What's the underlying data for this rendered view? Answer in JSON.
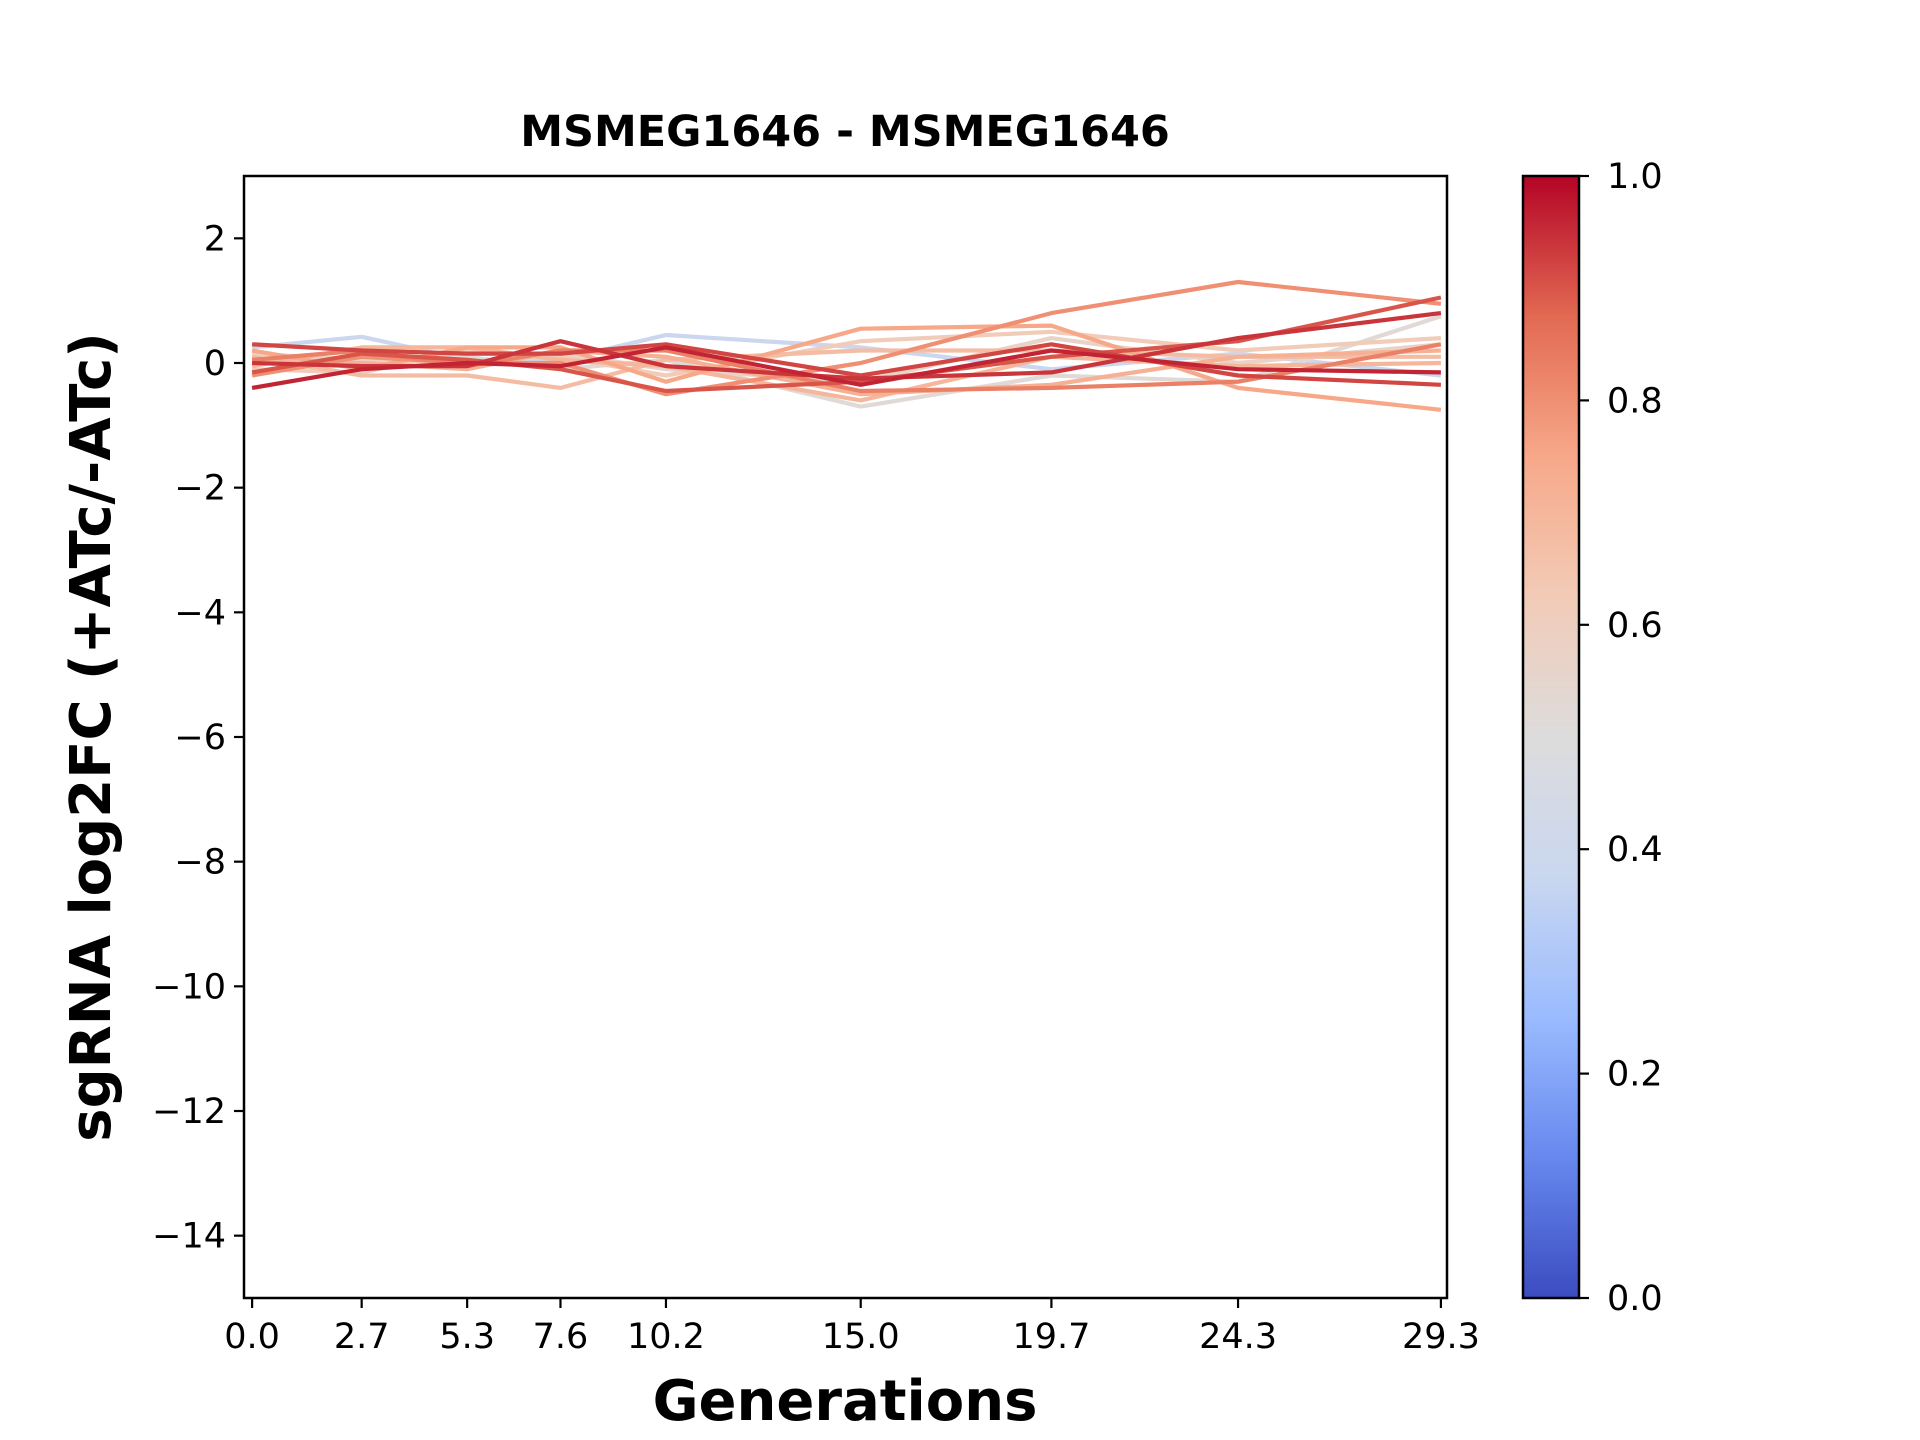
{
  "chart_data": {
    "type": "line",
    "title": "MSMEG1646 - MSMEG1646",
    "xlabel": "Generations",
    "ylabel": "sgRNA log2FC (+ATc/-ATc)",
    "x": [
      0.0,
      2.7,
      5.3,
      7.6,
      10.2,
      15.0,
      19.7,
      24.3,
      29.3
    ],
    "x_tick_labels": [
      "0.0",
      "2.7",
      "5.3",
      "7.6",
      "10.2",
      "15.0",
      "19.7",
      "24.3",
      "29.3"
    ],
    "ylim": [
      -15,
      3
    ],
    "y_ticks": [
      2,
      0,
      -2,
      -4,
      -6,
      -8,
      -10,
      -12,
      -14
    ],
    "y_tick_labels": [
      "2",
      "0",
      "−2",
      "−4",
      "−6",
      "−8",
      "−10",
      "−12",
      "−14"
    ],
    "grid": false,
    "colorbar": {
      "colormap": "coolwarm",
      "range": [
        0.0,
        1.0
      ],
      "ticks": [
        "0.0",
        "0.2",
        "0.4",
        "0.6",
        "0.8",
        "1.0"
      ],
      "colors": [
        "#3b4cc0",
        "#6788ee",
        "#9abbff",
        "#c9d7f0",
        "#dddcdc",
        "#f2cbb7",
        "#f7a889",
        "#e26952",
        "#b40426"
      ]
    },
    "series": [
      {
        "color_value": 0.38,
        "values": [
          0.25,
          0.42,
          0.05,
          0.05,
          0.45,
          0.25,
          -0.1,
          0.15,
          -0.2
        ]
      },
      {
        "color_value": 0.52,
        "values": [
          0.05,
          -0.05,
          0.1,
          -0.1,
          0.05,
          -0.7,
          -0.2,
          -0.3,
          0.75
        ]
      },
      {
        "color_value": 0.57,
        "values": [
          0.15,
          0.05,
          0.0,
          0.15,
          -0.1,
          -0.3,
          0.4,
          0.0,
          0.3
        ]
      },
      {
        "color_value": 0.62,
        "values": [
          -0.1,
          -0.15,
          0.2,
          0.1,
          -0.2,
          0.35,
          0.5,
          0.2,
          0.4
        ]
      },
      {
        "color_value": 0.68,
        "values": [
          0.1,
          -0.2,
          -0.2,
          -0.4,
          0.05,
          0.2,
          0.2,
          0.1,
          0.1
        ]
      },
      {
        "color_value": 0.7,
        "values": [
          -0.05,
          0.25,
          0.25,
          0.05,
          -0.05,
          -0.6,
          0.1,
          -0.05,
          0.0
        ]
      },
      {
        "color_value": 0.72,
        "values": [
          0.0,
          0.0,
          -0.1,
          0.2,
          0.1,
          -0.5,
          -0.35,
          0.1,
          0.2
        ]
      },
      {
        "color_value": 0.75,
        "values": [
          0.2,
          -0.1,
          0.25,
          0.25,
          -0.3,
          0.55,
          0.6,
          -0.4,
          -0.75
        ]
      },
      {
        "color_value": 0.8,
        "values": [
          -0.2,
          0.1,
          0.0,
          0.0,
          -0.5,
          0.0,
          0.8,
          1.3,
          0.95
        ]
      },
      {
        "color_value": 0.83,
        "values": [
          0.05,
          0.2,
          -0.05,
          0.2,
          0.2,
          -0.45,
          -0.4,
          -0.3,
          0.3
        ]
      },
      {
        "color_value": 0.9,
        "values": [
          -0.15,
          0.15,
          0.05,
          -0.1,
          -0.45,
          -0.3,
          0.1,
          0.35,
          1.05
        ]
      },
      {
        "color_value": 0.92,
        "values": [
          0.3,
          0.2,
          0.15,
          0.15,
          0.3,
          -0.2,
          0.3,
          -0.2,
          -0.35
        ]
      },
      {
        "color_value": 0.94,
        "values": [
          0.0,
          -0.05,
          -0.05,
          0.35,
          -0.05,
          -0.25,
          -0.15,
          0.4,
          0.8
        ]
      },
      {
        "color_value": 0.96,
        "values": [
          -0.4,
          -0.1,
          0.0,
          -0.05,
          0.25,
          -0.35,
          0.2,
          -0.1,
          -0.15
        ]
      }
    ]
  }
}
